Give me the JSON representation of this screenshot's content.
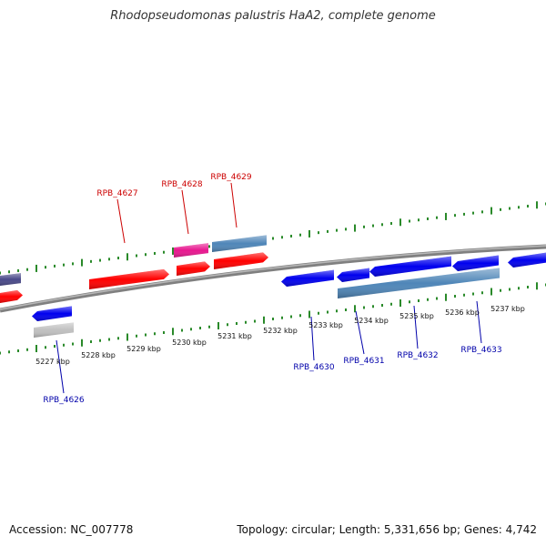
{
  "title": "Rhodopseudomonas palustris HaA2, complete genome",
  "footer": {
    "accession": "Accession: NC_007778",
    "summary": "Topology: circular; Length: 5,331,656 bp; Genes: 4,742"
  },
  "colors": {
    "backbone": "#888888",
    "tick": "#2a8a2a",
    "forward_label": "#cc0000",
    "reverse_label": "#0000aa",
    "forward_gene": "#ff0000",
    "reverse_gene": "#0000ee",
    "rna": "#4f86b8",
    "pink": "#e8178f",
    "grey": "#c0c0c0",
    "dark": "#4a4a8a"
  },
  "scale_labels": [
    "5227 kbp",
    "5228 kbp",
    "5229 kbp",
    "5230 kbp",
    "5231 kbp",
    "5232 kbp",
    "5233 kbp",
    "5234 kbp",
    "5235 kbp",
    "5236 kbp",
    "5237 kbp"
  ],
  "forward_gene_labels": [
    "RPB_4627",
    "RPB_4628",
    "RPB_4629"
  ],
  "reverse_gene_labels": [
    "RPB_4626",
    "RPB_4630",
    "RPB_4631",
    "RPB_4632",
    "RPB_4633"
  ]
}
